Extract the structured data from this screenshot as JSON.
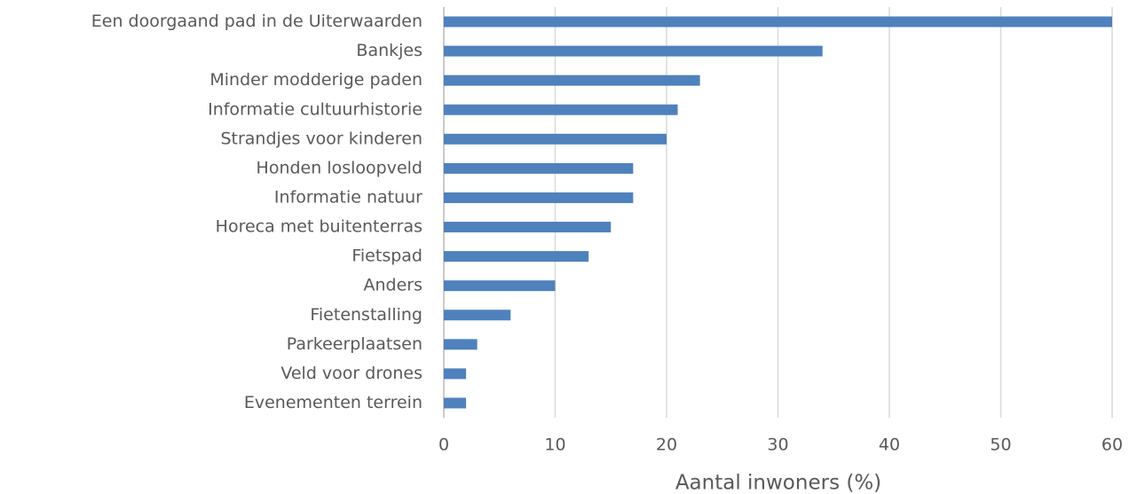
{
  "chart_data": {
    "type": "bar",
    "orientation": "horizontal",
    "x_label": "Aantal inwoners (%)",
    "categories": [
      "Een doorgaand pad in de Uiterwaarden",
      "Bankjes",
      "Minder modderige paden",
      "Informatie cultuurhistorie",
      "Strandjes voor kinderen",
      "Honden losloopveld",
      "Informatie natuur",
      "Horeca met buitenterras",
      "Fietspad",
      "Anders",
      "Fietenstalling",
      "Parkeerplaatsen",
      "Veld voor drones",
      "Evenementen terrein"
    ],
    "values": [
      60,
      34,
      23,
      21,
      20,
      17,
      17,
      15,
      13,
      10,
      6,
      3,
      2,
      2
    ],
    "color": "#4f81bd",
    "xlim": [
      0,
      60
    ],
    "xticks": [
      0,
      10,
      20,
      30,
      40,
      50,
      60
    ],
    "grid": true
  }
}
